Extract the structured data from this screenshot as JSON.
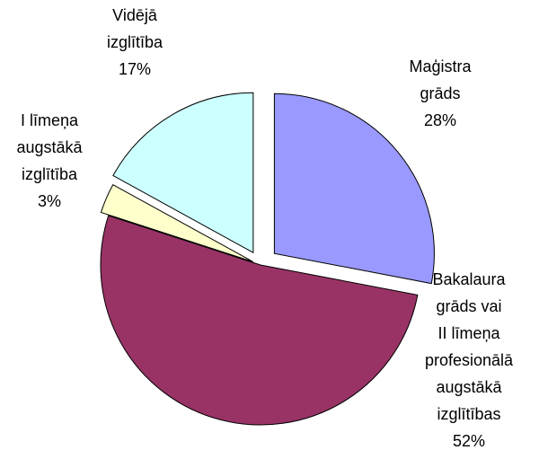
{
  "chart_data": {
    "type": "pie",
    "categories": [
      [
        "Maģistra",
        "grāds"
      ],
      [
        "Bakalaura",
        "grāds vai",
        "II līmeņa",
        "profesionālā",
        "augstākā",
        "izglītības"
      ],
      [
        "I līmeņa",
        "augstākā",
        "izglītība"
      ],
      [
        "Vidējā",
        "izglītība"
      ]
    ],
    "values": [
      28,
      52,
      3,
      17
    ],
    "value_labels": [
      "28%",
      "52%",
      "3%",
      "17%"
    ],
    "colors": [
      "#9999ff",
      "#993366",
      "#ffffcc",
      "#ccffff"
    ],
    "explode": [
      20,
      0,
      9,
      16
    ]
  }
}
